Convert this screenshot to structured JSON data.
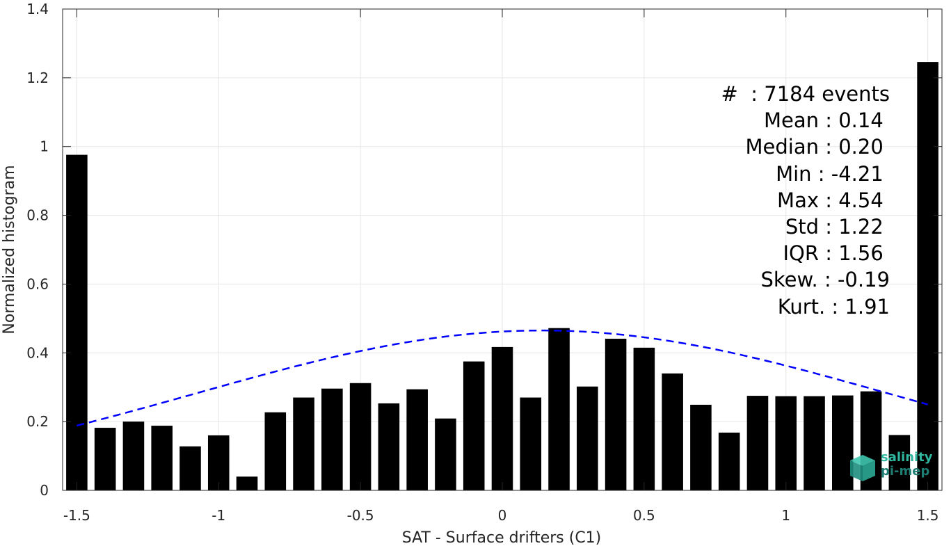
{
  "chart_data": {
    "type": "bar",
    "xlabel": "SAT - Surface drifters (C1)",
    "ylabel": "Normalized histogram",
    "xlim": [
      -1.55,
      1.55
    ],
    "ylim": [
      0,
      1.4
    ],
    "xticks": [
      -1.5,
      -1,
      -0.5,
      0,
      0.5,
      1,
      1.5
    ],
    "xtick_labels": [
      "-1.5",
      "-1",
      "-0.5",
      "0",
      "0.5",
      "1",
      "1.5"
    ],
    "yticks": [
      0,
      0.2,
      0.4,
      0.6,
      0.8,
      1,
      1.2,
      1.4
    ],
    "ytick_labels": [
      "0",
      "0.2",
      "0.4",
      "0.6",
      "0.8",
      "1",
      "1.2",
      "1.4"
    ],
    "grid": true,
    "bar_color": "#000000",
    "bar_width": 0.075,
    "x": [
      -1.5,
      -1.4,
      -1.3,
      -1.2,
      -1.1,
      -1.0,
      -0.9,
      -0.8,
      -0.7,
      -0.6,
      -0.5,
      -0.4,
      -0.3,
      -0.2,
      -0.1,
      0.0,
      0.1,
      0.2,
      0.3,
      0.4,
      0.5,
      0.6,
      0.7,
      0.8,
      0.9,
      1.0,
      1.1,
      1.2,
      1.3,
      1.4,
      1.5
    ],
    "values": [
      0.976,
      0.182,
      0.2,
      0.188,
      0.128,
      0.16,
      0.04,
      0.227,
      0.27,
      0.296,
      0.312,
      0.253,
      0.294,
      0.209,
      0.375,
      0.417,
      0.27,
      0.472,
      0.302,
      0.441,
      0.415,
      0.34,
      0.249,
      0.168,
      0.275,
      0.274,
      0.274,
      0.276,
      0.288,
      0.161,
      1.246
    ],
    "fit_curve": {
      "style": "dashed",
      "color": "#0000ff",
      "mean": 0.14,
      "std": 1.22,
      "peak": 0.465,
      "x_range": [
        -1.5,
        1.5
      ]
    }
  },
  "stats": {
    "lines": [
      "#  : 7184 events",
      "Mean : 0.14 ",
      "Median : 0.20 ",
      "Min : -4.21 ",
      "Max : 4.54 ",
      "Std : 1.22 ",
      "IQR : 1.56 ",
      "Skew. : -0.19",
      "Kurt. : 1.91"
    ]
  },
  "logo": {
    "line1": "salinity",
    "line2": "pi-mep",
    "color1": "#2fb7a0",
    "color2": "#1f7e74"
  }
}
